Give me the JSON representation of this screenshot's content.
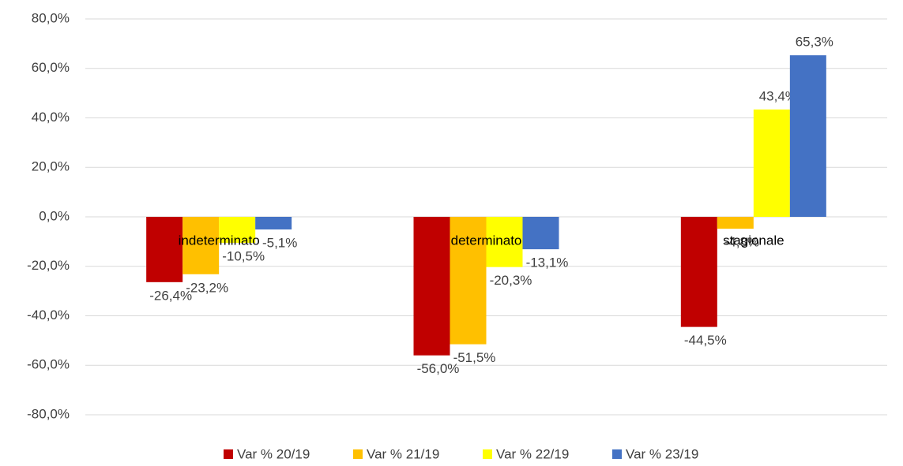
{
  "chart_data": {
    "type": "bar",
    "categories": [
      "indeterminato",
      "determinato",
      "stagionale"
    ],
    "series": [
      {
        "name": "Var % 20/19",
        "color": "#c00000",
        "values": [
          -26.4,
          -56.0,
          -44.5
        ],
        "value_labels": [
          "-26,4%",
          "-56,0%",
          "-44,5%"
        ]
      },
      {
        "name": "Var % 21/19",
        "color": "#ffc000",
        "values": [
          -23.2,
          -51.5,
          -4.8
        ],
        "value_labels": [
          "-23,2%",
          "-51,5%",
          "-4,8%"
        ]
      },
      {
        "name": "Var % 22/19",
        "color": "#ffff00",
        "values": [
          -10.5,
          -20.3,
          43.4
        ],
        "value_labels": [
          "-10,5%",
          "-20,3%",
          "43,4%"
        ]
      },
      {
        "name": "Var % 23/19",
        "color": "#4472c4",
        "values": [
          -5.1,
          -13.1,
          65.3
        ],
        "value_labels": [
          "-5,1%",
          "-13,1%",
          "65,3%"
        ]
      }
    ],
    "ylim": [
      -80,
      80
    ],
    "yticks": [
      {
        "value": -80,
        "label": "-80,0%"
      },
      {
        "value": -60,
        "label": "-60,0%"
      },
      {
        "value": -40,
        "label": "-40,0%"
      },
      {
        "value": -20,
        "label": "-20,0%"
      },
      {
        "value": 0,
        "label": "0,0%"
      },
      {
        "value": 20,
        "label": "20,0%"
      },
      {
        "value": 40,
        "label": "40,0%"
      },
      {
        "value": 60,
        "label": "60,0%"
      },
      {
        "value": 80,
        "label": "80,0%"
      }
    ],
    "grid": true,
    "legend": "bottom"
  }
}
